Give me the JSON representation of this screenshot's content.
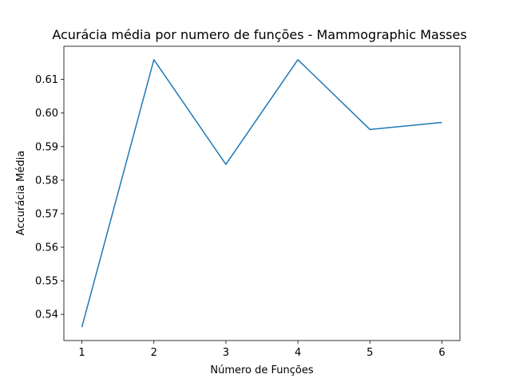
{
  "chart_data": {
    "type": "line",
    "title": "Acurácia média por numero de funções - Mammographic Masses",
    "xlabel": "Número de Funções",
    "ylabel": "Accurácia Média",
    "x": [
      1,
      2,
      3,
      4,
      5,
      6
    ],
    "series": [
      {
        "values": [
          0.5362,
          0.6159,
          0.5847,
          0.6159,
          0.5951,
          0.5972
        ],
        "color": "#1f77b4"
      }
    ],
    "xlim": [
      0.75,
      6.25
    ],
    "ylim": [
      0.5322,
      0.6199
    ],
    "xticks": [
      "1",
      "2",
      "3",
      "4",
      "5",
      "6"
    ],
    "yticks": [
      "0.54",
      "0.55",
      "0.56",
      "0.57",
      "0.58",
      "0.59",
      "0.60",
      "0.61"
    ],
    "grid": false,
    "legend": "none"
  }
}
